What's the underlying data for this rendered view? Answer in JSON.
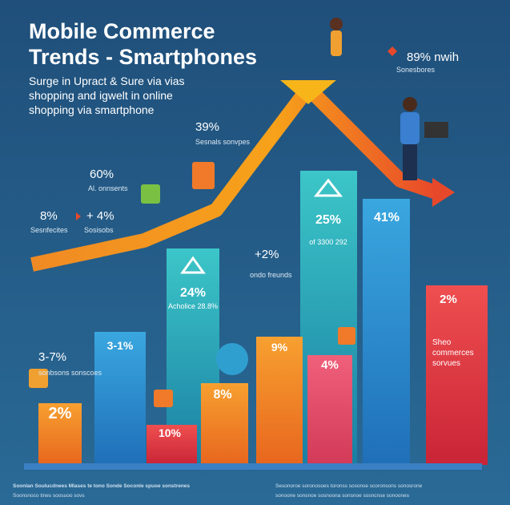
{
  "header": {
    "title_lines": [
      "Mobile Commerce",
      "Trends - Smartphones"
    ],
    "subtitle_lines": [
      "Surge in Upract & Sure via vias",
      "shopping and igwelt in online",
      "shopping via smartphone"
    ]
  },
  "callouts": [
    {
      "value": "89% nwih",
      "caption": "Sonesbores"
    },
    {
      "value": "39%",
      "caption": "Sesnals sonvpes"
    },
    {
      "value": "60%",
      "caption": "Al. onnsents"
    },
    {
      "value": "8%",
      "caption": "Sesnfecites"
    },
    {
      "value": "+ 4%",
      "caption": "Sosisobs"
    },
    {
      "value": "+2%",
      "caption": "ondo freunds"
    },
    {
      "value": "3-7%",
      "caption": "sonbsons sonscoes"
    }
  ],
  "bars": [
    {
      "label": "2%"
    },
    {
      "label": "3-1%"
    },
    {
      "label": "24%",
      "caption": "Acholice 28.8%"
    },
    {
      "label": "10%"
    },
    {
      "label": "8%"
    },
    {
      "label": "9%"
    },
    {
      "label": "25%",
      "caption": "of 3300 292"
    },
    {
      "label": "4%"
    },
    {
      "label": "41%"
    },
    {
      "label": "2%",
      "caption": "Sheo commerces sorvues"
    }
  ],
  "footer": {
    "left": [
      "Soonlan Soulucdnees Mlases te tono Sonde Soconle spuoe sonstrenes",
      "Soonsnoco tines soosuoo sovs"
    ],
    "right": [
      "Sesonoroe soronosoes toronss sosonse scoronsons sonosrone",
      "sonoone sonsnoe sosnoona sonsnoe sosncnse sonoones"
    ]
  }
}
